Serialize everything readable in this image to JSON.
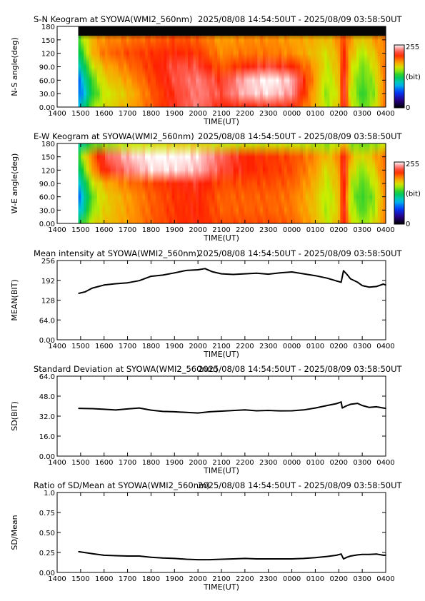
{
  "figure": {
    "site": "SYOWA",
    "period": "2025/08/08 14:54:50UT - 2025/08/09 03:58:50UT"
  },
  "chart_data": [
    {
      "type": "heatmap",
      "title": "S-N Keogram at SYOWA(WMI2_560nm)",
      "period": "2025/08/08 14:54:50UT - 2025/08/09 03:58:50UT",
      "xlabel": "TIME(UT)",
      "ylabel": "N-S angle(deg)",
      "x_ticks": [
        "1400",
        "1500",
        "1600",
        "1700",
        "1800",
        "1900",
        "2000",
        "2100",
        "2200",
        "2300",
        "0000",
        "0100",
        "0200",
        "0300",
        "0400"
      ],
      "y_ticks": [
        "0.00",
        "30.0",
        "60.0",
        "90.0",
        "120",
        "150",
        "180"
      ],
      "xlim": [
        0,
        14
      ],
      "ylim": [
        0,
        180
      ],
      "data_start": 0.9,
      "colorbar": {
        "max_label": "255",
        "unit_label": "(bit)",
        "min_label": "0"
      },
      "rows_deg": [
        0,
        30,
        60,
        90,
        120,
        150,
        180
      ],
      "times": [
        0.9,
        1.5,
        2,
        3,
        4,
        5,
        6,
        7,
        8,
        9,
        10,
        11,
        11.5,
        12,
        12.2,
        12.5,
        13,
        13.5,
        14
      ],
      "intensity": [
        [
          90,
          150,
          165,
          180,
          200,
          220,
          235,
          215,
          215,
          220,
          215,
          180,
          155,
          175,
          230,
          170,
          140,
          160,
          200
        ],
        [
          70,
          130,
          160,
          175,
          200,
          220,
          235,
          225,
          245,
          250,
          240,
          180,
          150,
          170,
          230,
          160,
          135,
          150,
          200
        ],
        [
          75,
          140,
          170,
          185,
          205,
          225,
          235,
          220,
          245,
          255,
          245,
          185,
          155,
          175,
          230,
          165,
          140,
          155,
          200
        ],
        [
          95,
          160,
          180,
          195,
          210,
          225,
          225,
          200,
          215,
          225,
          215,
          185,
          160,
          180,
          225,
          170,
          145,
          165,
          200
        ],
        [
          120,
          180,
          195,
          205,
          210,
          215,
          210,
          190,
          195,
          195,
          190,
          175,
          165,
          185,
          215,
          180,
          155,
          175,
          195
        ],
        [
          140,
          180,
          190,
          195,
          200,
          205,
          200,
          185,
          190,
          190,
          185,
          180,
          175,
          190,
          210,
          185,
          170,
          185,
          195
        ],
        [
          0,
          0,
          0,
          0,
          0,
          0,
          0,
          0,
          0,
          0,
          0,
          0,
          0,
          0,
          0,
          0,
          0,
          0,
          0
        ]
      ]
    },
    {
      "type": "heatmap",
      "title": "E-W Keogram at SYOWA(WMI2_560nm)",
      "period": "2025/08/08 14:54:50UT - 2025/08/09 03:58:50UT",
      "xlabel": "TIME(UT)",
      "ylabel": "W-E angle(deg)",
      "x_ticks": [
        "1400",
        "1500",
        "1600",
        "1700",
        "1800",
        "1900",
        "2000",
        "2100",
        "2200",
        "2300",
        "0000",
        "0100",
        "0200",
        "0300",
        "0400"
      ],
      "y_ticks": [
        "0.00",
        "30.0",
        "60.0",
        "90.0",
        "120",
        "150",
        "180"
      ],
      "xlim": [
        0,
        14
      ],
      "ylim": [
        0,
        180
      ],
      "data_start": 0.9,
      "colorbar": {
        "max_label": "255",
        "unit_label": "(bit)",
        "min_label": "0"
      },
      "rows_deg": [
        0,
        30,
        60,
        90,
        120,
        150,
        180
      ],
      "times": [
        0.9,
        1.5,
        2,
        3,
        4,
        5,
        6,
        7,
        8,
        9,
        10,
        11,
        11.5,
        12,
        12.2,
        12.5,
        13,
        13.5,
        14
      ],
      "intensity": [
        [
          120,
          165,
          175,
          185,
          200,
          210,
          215,
          205,
          205,
          205,
          200,
          180,
          160,
          180,
          225,
          170,
          150,
          165,
          195
        ],
        [
          90,
          150,
          170,
          185,
          200,
          210,
          215,
          200,
          200,
          200,
          195,
          175,
          155,
          175,
          225,
          160,
          140,
          155,
          195
        ],
        [
          75,
          145,
          170,
          185,
          200,
          210,
          215,
          200,
          200,
          200,
          195,
          175,
          155,
          175,
          225,
          155,
          135,
          150,
          195
        ],
        [
          90,
          160,
          180,
          195,
          205,
          215,
          220,
          205,
          205,
          205,
          200,
          180,
          160,
          180,
          225,
          160,
          140,
          160,
          195
        ],
        [
          115,
          185,
          215,
          235,
          250,
          250,
          245,
          225,
          215,
          210,
          205,
          185,
          165,
          185,
          225,
          170,
          150,
          170,
          200
        ],
        [
          135,
          195,
          225,
          245,
          255,
          255,
          250,
          230,
          215,
          210,
          205,
          190,
          175,
          190,
          225,
          180,
          165,
          180,
          200
        ],
        [
          100,
          140,
          150,
          160,
          165,
          170,
          170,
          160,
          160,
          160,
          160,
          155,
          150,
          160,
          180,
          150,
          145,
          150,
          160
        ]
      ]
    },
    {
      "type": "line",
      "title": "Mean intensity at SYOWA(WMI2_560nm)",
      "period": "2025/08/08 14:54:50UT - 2025/08/09 03:58:50UT",
      "xlabel": "TIME(UT)",
      "ylabel": "MEAN(BIT)",
      "x_ticks": [
        "1400",
        "1500",
        "1600",
        "1700",
        "1800",
        "1900",
        "2000",
        "2100",
        "2200",
        "2300",
        "0000",
        "0100",
        "0200",
        "0300",
        "0400"
      ],
      "y_ticks": [
        "0.00",
        "64.0",
        "128",
        "192",
        "256"
      ],
      "xlim": [
        0,
        14
      ],
      "ylim": [
        0,
        256
      ],
      "series": [
        {
          "x": [
            0.92,
            1.2,
            1.5,
            2.0,
            2.5,
            3.0,
            3.5,
            4.0,
            4.5,
            5.0,
            5.5,
            6.0,
            6.3,
            6.6,
            7.0,
            7.5,
            8.0,
            8.5,
            9.0,
            9.5,
            10.0,
            10.5,
            11.0,
            11.5,
            11.9,
            12.1,
            12.2,
            12.35,
            12.5,
            12.8,
            13.0,
            13.3,
            13.6,
            13.9,
            14.0
          ],
          "y": [
            150,
            155,
            167,
            177,
            181,
            184,
            191,
            205,
            209,
            216,
            224,
            226,
            230,
            220,
            213,
            211,
            213,
            215,
            212,
            216,
            219,
            213,
            207,
            199,
            190,
            186,
            223,
            211,
            197,
            186,
            175,
            170,
            172,
            180,
            177
          ]
        }
      ]
    },
    {
      "type": "line",
      "title": "Standard Deviation at SYOWA(WMI2_560nm)",
      "period": "2025/08/08 14:54:50UT - 2025/08/09 03:58:50UT",
      "xlabel": "TIME(UT)",
      "ylabel": "SD(BIT)",
      "x_ticks": [
        "1400",
        "1500",
        "1600",
        "1700",
        "1800",
        "1900",
        "2000",
        "2100",
        "2200",
        "2300",
        "0000",
        "0100",
        "0200",
        "0300",
        "0400"
      ],
      "y_ticks": [
        "0.00",
        "16.0",
        "32.0",
        "48.0",
        "64.0"
      ],
      "xlim": [
        0,
        14
      ],
      "ylim": [
        0,
        64
      ],
      "series": [
        {
          "x": [
            0.92,
            1.5,
            2.0,
            2.5,
            3.0,
            3.5,
            4.0,
            4.5,
            5.0,
            5.5,
            6.0,
            6.5,
            7.0,
            7.5,
            8.0,
            8.5,
            9.0,
            9.5,
            10.0,
            10.5,
            11.0,
            11.5,
            11.9,
            12.1,
            12.15,
            12.3,
            12.5,
            12.8,
            13.0,
            13.3,
            13.6,
            13.9,
            14.0
          ],
          "y": [
            38.2,
            38.0,
            37.5,
            36.9,
            37.8,
            38.5,
            36.8,
            35.8,
            35.5,
            35.0,
            34.5,
            35.5,
            36.0,
            36.5,
            37.0,
            36.3,
            36.6,
            36.2,
            36.3,
            37.0,
            38.5,
            40.5,
            42.0,
            43.3,
            38.5,
            40.0,
            41.5,
            42.2,
            40.5,
            39.0,
            39.5,
            38.5,
            38.2
          ]
        }
      ]
    },
    {
      "type": "line",
      "title": "Ratio of SD/Mean at SYOWA(WMI2_560nm)",
      "period": "2025/08/08 14:54:50UT - 2025/08/09 03:58:50UT",
      "xlabel": "TIME(UT)",
      "ylabel": "SD/Mean",
      "x_ticks": [
        "1400",
        "1500",
        "1600",
        "1700",
        "1800",
        "1900",
        "2000",
        "2100",
        "2200",
        "2300",
        "0000",
        "0100",
        "0200",
        "0300",
        "0400"
      ],
      "y_ticks": [
        "0.00",
        "0.25",
        "0.50",
        "0.75",
        "1.0"
      ],
      "xlim": [
        0,
        14
      ],
      "ylim": [
        0,
        1
      ],
      "series": [
        {
          "x": [
            0.92,
            1.5,
            2.0,
            2.5,
            3.0,
            3.5,
            4.0,
            4.5,
            5.0,
            5.5,
            6.0,
            6.5,
            7.0,
            7.5,
            8.0,
            8.5,
            9.0,
            9.5,
            10.0,
            10.5,
            11.0,
            11.5,
            11.9,
            12.1,
            12.2,
            12.35,
            12.5,
            12.8,
            13.0,
            13.3,
            13.6,
            13.9,
            14.0
          ],
          "y": [
            0.26,
            0.235,
            0.215,
            0.21,
            0.205,
            0.205,
            0.19,
            0.18,
            0.175,
            0.165,
            0.16,
            0.16,
            0.165,
            0.17,
            0.175,
            0.17,
            0.17,
            0.17,
            0.17,
            0.175,
            0.185,
            0.2,
            0.215,
            0.23,
            0.17,
            0.19,
            0.205,
            0.22,
            0.225,
            0.225,
            0.23,
            0.215,
            0.215
          ]
        }
      ]
    }
  ]
}
